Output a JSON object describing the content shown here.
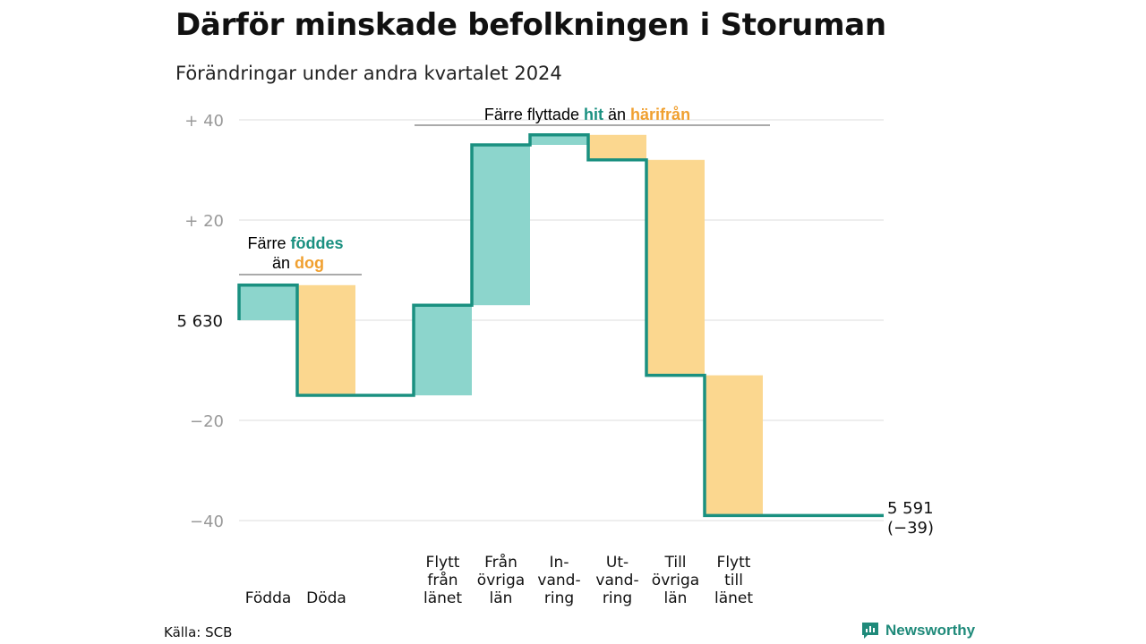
{
  "title": "Därför minskade befolkningen i Storuman",
  "subtitle": "Förändringar under andra kvartalet 2024",
  "source": "Källa: SCB",
  "brand": "Newsworthy",
  "colors": {
    "teal": "#1a9080",
    "teal_fill": "#8cd5cc",
    "orange": "#f0a030",
    "orange_fill": "#fbd78f",
    "grid": "#dddddd",
    "tick": "#999999"
  },
  "annotations": {
    "births": {
      "line1": "Färre",
      "line1_accent": "föddes",
      "line2": "än",
      "line2_accent": "dog"
    },
    "moves": {
      "prefix": "Färre flyttade",
      "accent1": "hit",
      "middle": "än",
      "accent2": "härifrån"
    }
  },
  "chart_data": {
    "type": "waterfall",
    "title": "Därför minskade befolkningen i Storuman",
    "subtitle": "Förändringar under andra kvartalet 2024",
    "start_value": 5630,
    "start_label": "5 630",
    "end_value": 5591,
    "end_label": "5 591",
    "end_change_label": "(−39)",
    "ylim": [
      -42,
      42
    ],
    "yticks": [
      {
        "value": 40,
        "label": "+ 40"
      },
      {
        "value": 20,
        "label": "+ 20"
      },
      {
        "value": 0,
        "label": "5 630"
      },
      {
        "value": -20,
        "label": "−20"
      },
      {
        "value": -40,
        "label": "−40"
      }
    ],
    "steps": [
      {
        "label": [
          "",
          "",
          "Födda"
        ],
        "change": 7,
        "kind": "in"
      },
      {
        "label": [
          "",
          "",
          "Döda"
        ],
        "change": -22,
        "kind": "out"
      },
      {
        "label": [],
        "change": 0,
        "kind": "gap"
      },
      {
        "label": [
          "Flytt",
          "från",
          "länet"
        ],
        "change": 18,
        "kind": "in"
      },
      {
        "label": [
          "Från",
          "övriga",
          "län"
        ],
        "change": 32,
        "kind": "in"
      },
      {
        "label": [
          "In-",
          "vand-",
          "ring"
        ],
        "change": 2,
        "kind": "in"
      },
      {
        "label": [
          "Ut-",
          "vand-",
          "ring"
        ],
        "change": -5,
        "kind": "out"
      },
      {
        "label": [
          "Till",
          "övriga",
          "län"
        ],
        "change": -43,
        "kind": "out"
      },
      {
        "label": [
          "Flytt",
          "till",
          "länet"
        ],
        "change": -28,
        "kind": "out"
      }
    ]
  }
}
